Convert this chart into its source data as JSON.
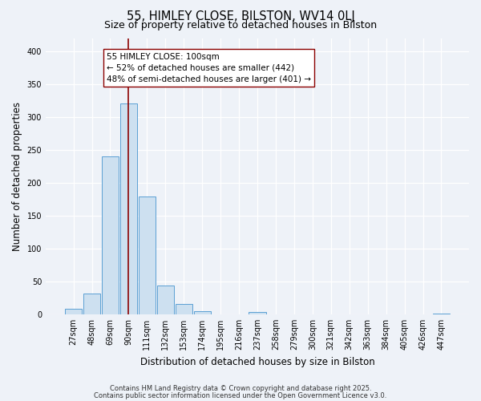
{
  "title": "55, HIMLEY CLOSE, BILSTON, WV14 0LJ",
  "subtitle": "Size of property relative to detached houses in Bilston",
  "xlabel": "Distribution of detached houses by size in Bilston",
  "ylabel": "Number of detached properties",
  "bin_labels": [
    "27sqm",
    "48sqm",
    "69sqm",
    "90sqm",
    "111sqm",
    "132sqm",
    "153sqm",
    "174sqm",
    "195sqm",
    "216sqm",
    "237sqm",
    "258sqm",
    "279sqm",
    "300sqm",
    "321sqm",
    "342sqm",
    "363sqm",
    "384sqm",
    "405sqm",
    "426sqm",
    "447sqm"
  ],
  "bar_values": [
    8,
    32,
    240,
    321,
    179,
    44,
    16,
    5,
    0,
    0,
    3,
    0,
    0,
    0,
    0,
    0,
    0,
    0,
    0,
    0,
    1
  ],
  "bar_color": "#cde0f0",
  "bar_edge_color": "#5a9fd4",
  "ylim": [
    0,
    420
  ],
  "yticks": [
    0,
    50,
    100,
    150,
    200,
    250,
    300,
    350,
    400
  ],
  "vline_x": 3.0,
  "vline_color": "#8b0000",
  "annotation_text": "55 HIMLEY CLOSE: 100sqm\n← 52% of detached houses are smaller (442)\n48% of semi-detached houses are larger (401) →",
  "annotation_box_color": "#ffffff",
  "annotation_box_edge": "#8b0000",
  "footer1": "Contains HM Land Registry data © Crown copyright and database right 2025.",
  "footer2": "Contains public sector information licensed under the Open Government Licence v3.0.",
  "bg_color": "#eef2f8",
  "plot_bg_color": "#eef2f8",
  "grid_color": "#ffffff",
  "title_fontsize": 10.5,
  "subtitle_fontsize": 9,
  "tick_fontsize": 7,
  "ylabel_fontsize": 8.5,
  "xlabel_fontsize": 8.5,
  "annotation_fontsize": 7.5,
  "footer_fontsize": 6
}
